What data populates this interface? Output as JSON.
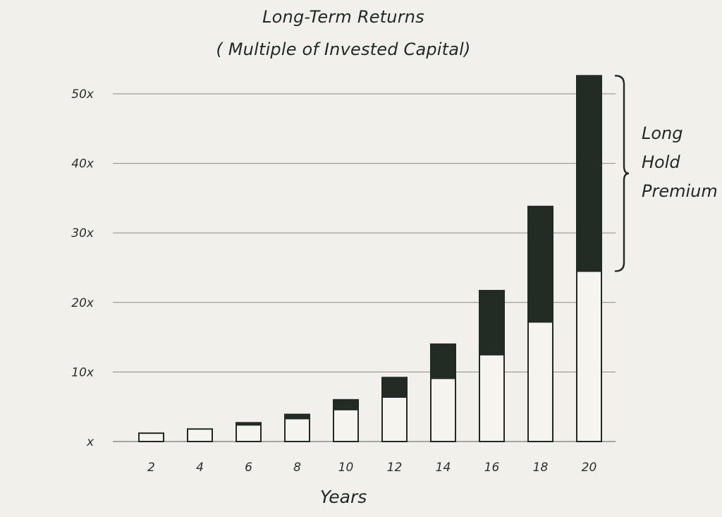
{
  "chart_data": {
    "type": "bar",
    "title_lines": [
      "Long-Term Returns",
      "( Multiple of Invested Capital)"
    ],
    "xlabel": "Years",
    "ylabel": "",
    "categories": [
      "2",
      "4",
      "6",
      "8",
      "10",
      "12",
      "14",
      "16",
      "18",
      "20"
    ],
    "y_ticks": [
      0,
      10,
      20,
      30,
      40,
      50
    ],
    "y_tick_labels": [
      "x",
      "10x",
      "20x",
      "30x",
      "40x",
      "50x"
    ],
    "ylim": [
      0,
      52.5
    ],
    "grid": true,
    "stacked": true,
    "series": [
      {
        "values": [
          1.2,
          1.8,
          2.4,
          3.3,
          4.6,
          6.4,
          9.1,
          12.5,
          17.2,
          24.5
        ],
        "color": "#f6f4ee"
      },
      {
        "values": [
          0.0,
          0.0,
          0.3,
          0.6,
          1.4,
          2.8,
          4.9,
          9.2,
          16.6,
          28.1
        ],
        "color": "#222b24"
      }
    ],
    "annotation": {
      "lines": [
        "Long",
        "Hold",
        "Premium"
      ],
      "target": "20"
    }
  },
  "colors": {
    "background": "#f2f0ea",
    "grid": "#8a8a86",
    "bar_outline": "#1f2a22"
  }
}
